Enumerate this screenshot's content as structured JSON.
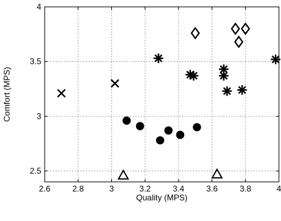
{
  "chart_data": {
    "type": "scatter",
    "xlabel": "Quality (MPS)",
    "ylabel": "Comfort (MPS)",
    "xlim": [
      2.6,
      4
    ],
    "ylim": [
      2.4,
      4
    ],
    "xticks": [
      2.6,
      2.8,
      3,
      3.2,
      3.4,
      3.6,
      3.8,
      4
    ],
    "yticks": [
      2.5,
      3,
      3.5,
      4
    ],
    "xtick_labels": [
      "2.6",
      "2.8",
      "3",
      "3.2",
      "3.4",
      "3.6",
      "3.8",
      "4"
    ],
    "ytick_labels": [
      "2.5",
      "3",
      "3.5",
      "4"
    ],
    "grid": true,
    "series": [
      {
        "marker": "x",
        "points": [
          [
            2.7,
            3.21
          ],
          [
            3.02,
            3.3
          ]
        ]
      },
      {
        "marker": "circle",
        "points": [
          [
            3.09,
            2.96
          ],
          [
            3.17,
            2.91
          ],
          [
            3.29,
            2.78
          ],
          [
            3.34,
            2.87
          ],
          [
            3.41,
            2.83
          ],
          [
            3.51,
            2.9
          ]
        ]
      },
      {
        "marker": "triangle",
        "points": [
          [
            3.07,
            2.46
          ],
          [
            3.63,
            2.47
          ]
        ]
      },
      {
        "marker": "asterisk",
        "points": [
          [
            3.28,
            3.53
          ],
          [
            3.47,
            3.38
          ],
          [
            3.49,
            3.37
          ],
          [
            3.67,
            3.43
          ],
          [
            3.67,
            3.37
          ],
          [
            3.69,
            3.23
          ],
          [
            3.78,
            3.24
          ],
          [
            3.98,
            3.52
          ]
        ]
      },
      {
        "marker": "diamond",
        "points": [
          [
            3.5,
            3.76
          ],
          [
            3.74,
            3.8
          ],
          [
            3.76,
            3.68
          ],
          [
            3.8,
            3.8
          ]
        ]
      }
    ]
  }
}
